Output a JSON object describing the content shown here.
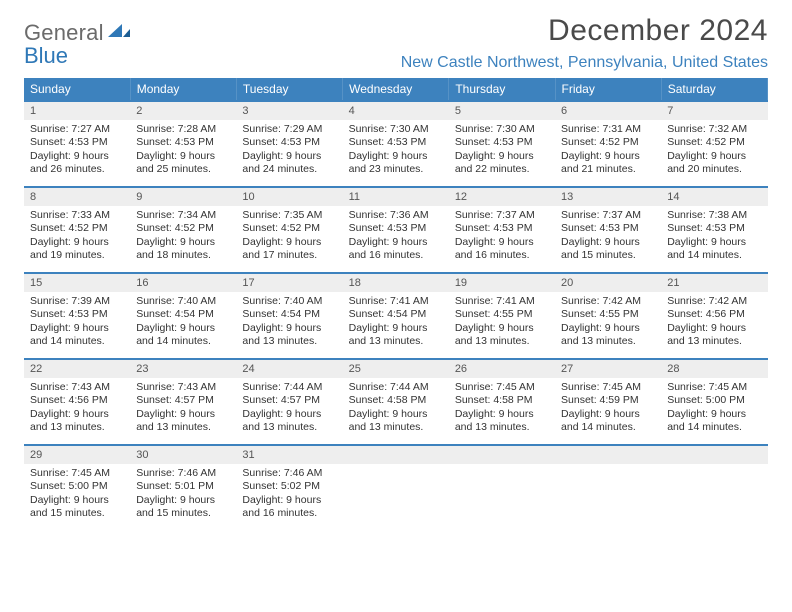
{
  "logo": {
    "word1": "General",
    "word2": "Blue",
    "text_color": "#6b6b6b",
    "accent_color": "#2f78b7"
  },
  "header": {
    "month_title": "December 2024",
    "location": "New Castle Northwest, Pennsylvania, United States",
    "title_color": "#4a4a4a",
    "location_color": "#3d82be"
  },
  "calendar": {
    "header_bg": "#3d82be",
    "header_fg": "#ffffff",
    "daynum_bg": "#eeeeee",
    "border_color": "#3d82be",
    "day_labels": [
      "Sunday",
      "Monday",
      "Tuesday",
      "Wednesday",
      "Thursday",
      "Friday",
      "Saturday"
    ],
    "weeks": [
      [
        {
          "n": "1",
          "sunrise": "Sunrise: 7:27 AM",
          "sunset": "Sunset: 4:53 PM",
          "daylight": "Daylight: 9 hours and 26 minutes."
        },
        {
          "n": "2",
          "sunrise": "Sunrise: 7:28 AM",
          "sunset": "Sunset: 4:53 PM",
          "daylight": "Daylight: 9 hours and 25 minutes."
        },
        {
          "n": "3",
          "sunrise": "Sunrise: 7:29 AM",
          "sunset": "Sunset: 4:53 PM",
          "daylight": "Daylight: 9 hours and 24 minutes."
        },
        {
          "n": "4",
          "sunrise": "Sunrise: 7:30 AM",
          "sunset": "Sunset: 4:53 PM",
          "daylight": "Daylight: 9 hours and 23 minutes."
        },
        {
          "n": "5",
          "sunrise": "Sunrise: 7:30 AM",
          "sunset": "Sunset: 4:53 PM",
          "daylight": "Daylight: 9 hours and 22 minutes."
        },
        {
          "n": "6",
          "sunrise": "Sunrise: 7:31 AM",
          "sunset": "Sunset: 4:52 PM",
          "daylight": "Daylight: 9 hours and 21 minutes."
        },
        {
          "n": "7",
          "sunrise": "Sunrise: 7:32 AM",
          "sunset": "Sunset: 4:52 PM",
          "daylight": "Daylight: 9 hours and 20 minutes."
        }
      ],
      [
        {
          "n": "8",
          "sunrise": "Sunrise: 7:33 AM",
          "sunset": "Sunset: 4:52 PM",
          "daylight": "Daylight: 9 hours and 19 minutes."
        },
        {
          "n": "9",
          "sunrise": "Sunrise: 7:34 AM",
          "sunset": "Sunset: 4:52 PM",
          "daylight": "Daylight: 9 hours and 18 minutes."
        },
        {
          "n": "10",
          "sunrise": "Sunrise: 7:35 AM",
          "sunset": "Sunset: 4:52 PM",
          "daylight": "Daylight: 9 hours and 17 minutes."
        },
        {
          "n": "11",
          "sunrise": "Sunrise: 7:36 AM",
          "sunset": "Sunset: 4:53 PM",
          "daylight": "Daylight: 9 hours and 16 minutes."
        },
        {
          "n": "12",
          "sunrise": "Sunrise: 7:37 AM",
          "sunset": "Sunset: 4:53 PM",
          "daylight": "Daylight: 9 hours and 16 minutes."
        },
        {
          "n": "13",
          "sunrise": "Sunrise: 7:37 AM",
          "sunset": "Sunset: 4:53 PM",
          "daylight": "Daylight: 9 hours and 15 minutes."
        },
        {
          "n": "14",
          "sunrise": "Sunrise: 7:38 AM",
          "sunset": "Sunset: 4:53 PM",
          "daylight": "Daylight: 9 hours and 14 minutes."
        }
      ],
      [
        {
          "n": "15",
          "sunrise": "Sunrise: 7:39 AM",
          "sunset": "Sunset: 4:53 PM",
          "daylight": "Daylight: 9 hours and 14 minutes."
        },
        {
          "n": "16",
          "sunrise": "Sunrise: 7:40 AM",
          "sunset": "Sunset: 4:54 PM",
          "daylight": "Daylight: 9 hours and 14 minutes."
        },
        {
          "n": "17",
          "sunrise": "Sunrise: 7:40 AM",
          "sunset": "Sunset: 4:54 PM",
          "daylight": "Daylight: 9 hours and 13 minutes."
        },
        {
          "n": "18",
          "sunrise": "Sunrise: 7:41 AM",
          "sunset": "Sunset: 4:54 PM",
          "daylight": "Daylight: 9 hours and 13 minutes."
        },
        {
          "n": "19",
          "sunrise": "Sunrise: 7:41 AM",
          "sunset": "Sunset: 4:55 PM",
          "daylight": "Daylight: 9 hours and 13 minutes."
        },
        {
          "n": "20",
          "sunrise": "Sunrise: 7:42 AM",
          "sunset": "Sunset: 4:55 PM",
          "daylight": "Daylight: 9 hours and 13 minutes."
        },
        {
          "n": "21",
          "sunrise": "Sunrise: 7:42 AM",
          "sunset": "Sunset: 4:56 PM",
          "daylight": "Daylight: 9 hours and 13 minutes."
        }
      ],
      [
        {
          "n": "22",
          "sunrise": "Sunrise: 7:43 AM",
          "sunset": "Sunset: 4:56 PM",
          "daylight": "Daylight: 9 hours and 13 minutes."
        },
        {
          "n": "23",
          "sunrise": "Sunrise: 7:43 AM",
          "sunset": "Sunset: 4:57 PM",
          "daylight": "Daylight: 9 hours and 13 minutes."
        },
        {
          "n": "24",
          "sunrise": "Sunrise: 7:44 AM",
          "sunset": "Sunset: 4:57 PM",
          "daylight": "Daylight: 9 hours and 13 minutes."
        },
        {
          "n": "25",
          "sunrise": "Sunrise: 7:44 AM",
          "sunset": "Sunset: 4:58 PM",
          "daylight": "Daylight: 9 hours and 13 minutes."
        },
        {
          "n": "26",
          "sunrise": "Sunrise: 7:45 AM",
          "sunset": "Sunset: 4:58 PM",
          "daylight": "Daylight: 9 hours and 13 minutes."
        },
        {
          "n": "27",
          "sunrise": "Sunrise: 7:45 AM",
          "sunset": "Sunset: 4:59 PM",
          "daylight": "Daylight: 9 hours and 14 minutes."
        },
        {
          "n": "28",
          "sunrise": "Sunrise: 7:45 AM",
          "sunset": "Sunset: 5:00 PM",
          "daylight": "Daylight: 9 hours and 14 minutes."
        }
      ],
      [
        {
          "n": "29",
          "sunrise": "Sunrise: 7:45 AM",
          "sunset": "Sunset: 5:00 PM",
          "daylight": "Daylight: 9 hours and 15 minutes."
        },
        {
          "n": "30",
          "sunrise": "Sunrise: 7:46 AM",
          "sunset": "Sunset: 5:01 PM",
          "daylight": "Daylight: 9 hours and 15 minutes."
        },
        {
          "n": "31",
          "sunrise": "Sunrise: 7:46 AM",
          "sunset": "Sunset: 5:02 PM",
          "daylight": "Daylight: 9 hours and 16 minutes."
        },
        null,
        null,
        null,
        null
      ]
    ]
  }
}
